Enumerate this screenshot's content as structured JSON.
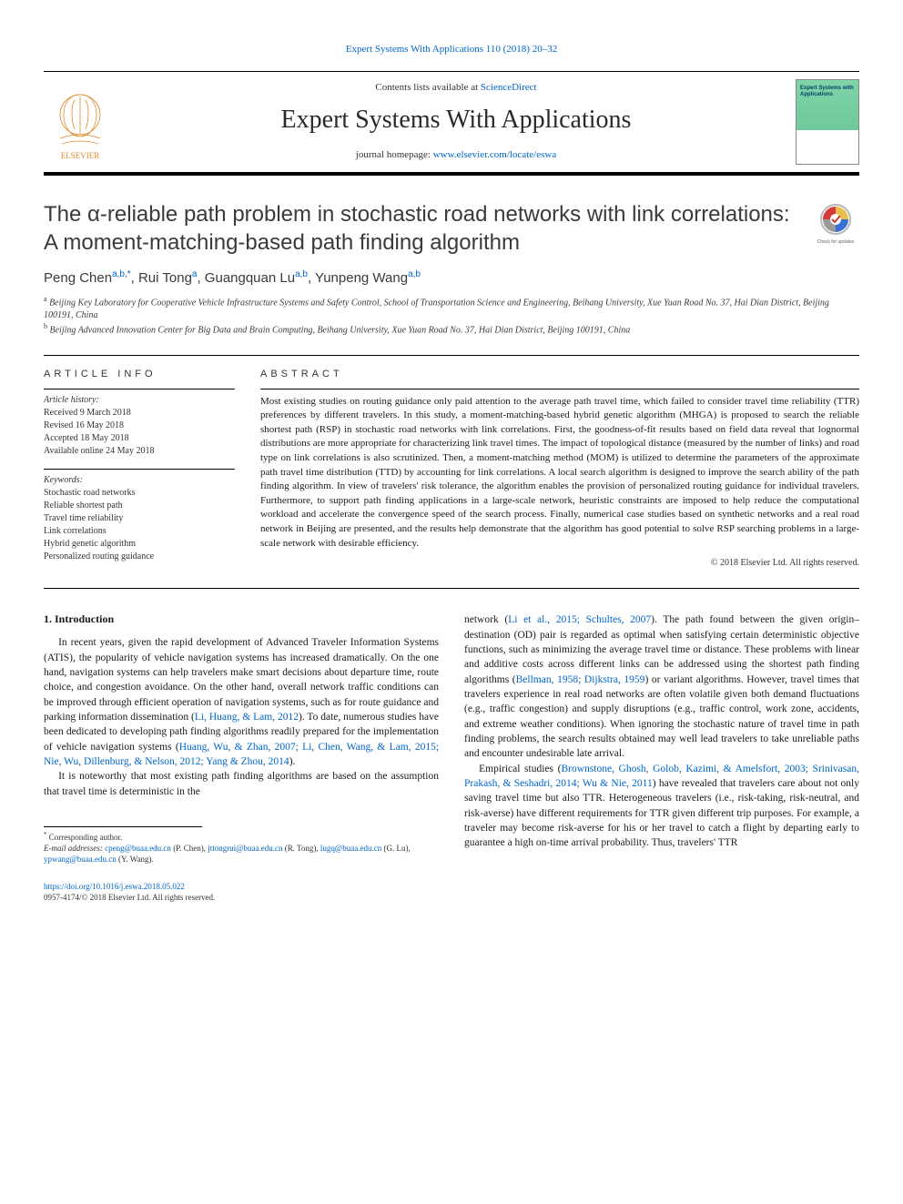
{
  "citation_line": "Expert Systems With Applications 110 (2018) 20–32",
  "header": {
    "contents_prefix": "Contents lists available at ",
    "contents_link": "ScienceDirect",
    "journal_name": "Expert Systems With Applications",
    "homepage_prefix": "journal homepage: ",
    "homepage_link": "www.elsevier.com/locate/eswa",
    "cover_text": "Expert\nSystems\nwith\nApplications"
  },
  "title": "The α-reliable path problem in stochastic road networks with link correlations: A moment-matching-based path finding algorithm",
  "authors_html": "Peng Chen|a,b,*|, Rui Tong|a|, Guangquan Lu|a,b|, Yunpeng Wang|a,b|",
  "affiliations": [
    {
      "sup": "a",
      "text": "Beijing Key Laboratory for Cooperative Vehicle Infrastructure Systems and Safety Control, School of Transportation Science and Engineering, Beihang University, Xue Yuan Road No. 37, Hai Dian District, Beijing 100191, China"
    },
    {
      "sup": "b",
      "text": "Beijing Advanced Innovation Center for Big Data and Brain Computing, Beihang University, Xue Yuan Road No. 37, Hai Dian District, Beijing 100191, China"
    }
  ],
  "info": {
    "article_info_heading": "ARTICLE INFO",
    "history_label": "Article history:",
    "history": [
      "Received 9 March 2018",
      "Revised 16 May 2018",
      "Accepted 18 May 2018",
      "Available online 24 May 2018"
    ],
    "keywords_label": "Keywords:",
    "keywords": [
      "Stochastic road networks",
      "Reliable shortest path",
      "Travel time reliability",
      "Link correlations",
      "Hybrid genetic algorithm",
      "Personalized routing guidance"
    ]
  },
  "abstract": {
    "heading": "ABSTRACT",
    "text": "Most existing studies on routing guidance only paid attention to the average path travel time, which failed to consider travel time reliability (TTR) preferences by different travelers. In this study, a moment-matching-based hybrid genetic algorithm (MHGA) is proposed to search the reliable shortest path (RSP) in stochastic road networks with link correlations. First, the goodness-of-fit results based on field data reveal that lognormal distributions are more appropriate for characterizing link travel times. The impact of topological distance (measured by the number of links) and road type on link correlations is also scrutinized. Then, a moment-matching method (MOM) is utilized to determine the parameters of the approximate path travel time distribution (TTD) by accounting for link correlations. A local search algorithm is designed to improve the search ability of the path finding algorithm. In view of travelers' risk tolerance, the algorithm enables the provision of personalized routing guidance for individual travelers. Furthermore, to support path finding applications in a large-scale network, heuristic constraints are imposed to help reduce the computational workload and accelerate the convergence speed of the search process. Finally, numerical case studies based on synthetic networks and a real road network in Beijing are presented, and the results help demonstrate that the algorithm has good potential to solve RSP searching problems in a large-scale network with desirable efficiency.",
    "copyright": "© 2018 Elsevier Ltd. All rights reserved."
  },
  "body": {
    "section_heading": "1. Introduction",
    "col1_p1": "In recent years, given the rapid development of Advanced Traveler Information Systems (ATIS), the popularity of vehicle navigation systems has increased dramatically. On the one hand, navigation systems can help travelers make smart decisions about departure time, route choice, and congestion avoidance. On the other hand, overall network traffic conditions can be improved through efficient operation of navigation systems, such as for route guidance and parking information dissemination (|Li, Huang, & Lam, 2012|). To date, numerous studies have been dedicated to developing path finding algorithms readily prepared for the implementation of vehicle navigation systems (|Huang, Wu, & Zhan, 2007; Li, Chen, Wang, & Lam, 2015; Nie, Wu, Dillenburg, & Nelson, 2012; Yang & Zhou, 2014|).",
    "col1_p2": "It is noteworthy that most existing path finding algorithms are based on the assumption that travel time is deterministic in the",
    "col2_p1": "network (|Li et al., 2015; Schultes, 2007|). The path found between the given origin–destination (OD) pair is regarded as optimal when satisfying certain deterministic objective functions, such as minimizing the average travel time or distance. These problems with linear and additive costs across different links can be addressed using the shortest path finding algorithms (|Bellman, 1958; Dijkstra, 1959|) or variant algorithms. However, travel times that travelers experience in real road networks are often volatile given both demand fluctuations (e.g., traffic congestion) and supply disruptions (e.g., traffic control, work zone, accidents, and extreme weather conditions). When ignoring the stochastic nature of travel time in path finding problems, the search results obtained may well lead travelers to take unreliable paths and encounter undesirable late arrival.",
    "col2_p2": "Empirical studies (|Brownstone, Ghosh, Golob, Kazimi, & Amelsfort, 2003; Srinivasan, Prakash, & Seshadri, 2014; Wu & Nie, 2011|) have revealed that travelers care about not only saving travel time but also TTR. Heterogeneous travelers (i.e., risk-taking, risk-neutral, and risk-averse) have different requirements for TTR given different trip purposes. For example, a traveler may become risk-averse for his or her travel to catch a flight by departing early to guarantee a high on-time arrival probability. Thus, travelers' TTR"
  },
  "footnotes": {
    "corresponding": "* Corresponding author.",
    "emails_prefix": "E-mail addresses: ",
    "emails": [
      {
        "addr": "cpeng@buaa.edu.cn",
        "who": "(P. Chen)"
      },
      {
        "addr": "jttongrui@buaa.edu.cn",
        "who": "(R. Tong)"
      },
      {
        "addr": "lugq@buaa.edu.cn",
        "who": "(G. Lu)"
      },
      {
        "addr": "ypwang@buaa.edu.cn",
        "who": "(Y. Wang)"
      }
    ]
  },
  "footer": {
    "doi": "https://doi.org/10.1016/j.eswa.2018.05.022",
    "issn_line": "0957-4174/© 2018 Elsevier Ltd. All rights reserved."
  },
  "colors": {
    "link": "#0066cc",
    "text": "#1a1a1a",
    "muted": "#333333",
    "cover_green": "#7fd4a8",
    "crossmark_ring": "#b8b8b8",
    "crossmark_red": "#d43a3a",
    "crossmark_blue": "#3a6fd4",
    "crossmark_yellow": "#e8c04a",
    "crossmark_gray": "#9a9a9a"
  }
}
